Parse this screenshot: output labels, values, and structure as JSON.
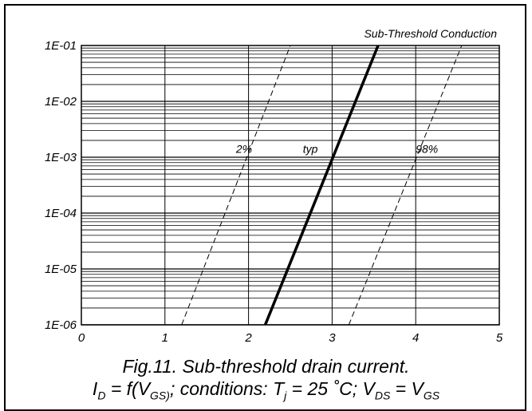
{
  "chart_data": {
    "type": "line",
    "title": "Sub-Threshold Conduction",
    "xlim": [
      0,
      5
    ],
    "ylim": [
      1e-06,
      0.1
    ],
    "yscale": "log",
    "x_ticks": [
      "0",
      "1",
      "2",
      "3",
      "4",
      "5"
    ],
    "y_ticks": [
      "1E-06",
      "1E-05",
      "1E-04",
      "1E-03",
      "1E-02",
      "1E-01"
    ],
    "grid": true,
    "series": [
      {
        "name": "2%",
        "style": "dashed",
        "x": [
          1.2,
          2.5
        ],
        "y": [
          1e-06,
          0.1
        ],
        "label_x": 1.85,
        "label_y": 0.0012
      },
      {
        "name": "typ",
        "style": "solid-bold",
        "x": [
          2.2,
          3.55
        ],
        "y": [
          1e-06,
          0.1
        ],
        "label_x": 2.65,
        "label_y": 0.0012
      },
      {
        "name": "98%",
        "style": "dashed",
        "x": [
          3.2,
          4.55
        ],
        "y": [
          1e-06,
          0.1
        ],
        "label_x": 4.0,
        "label_y": 0.0012
      }
    ]
  },
  "caption": {
    "line1": "Fig.11.   Sub-threshold drain current.",
    "line2_parts": [
      "I",
      "D",
      " = f(V",
      "GS)",
      "; conditions: T",
      "j",
      " = 25 ˚C; V",
      "DS",
      " = V",
      "GS"
    ]
  }
}
